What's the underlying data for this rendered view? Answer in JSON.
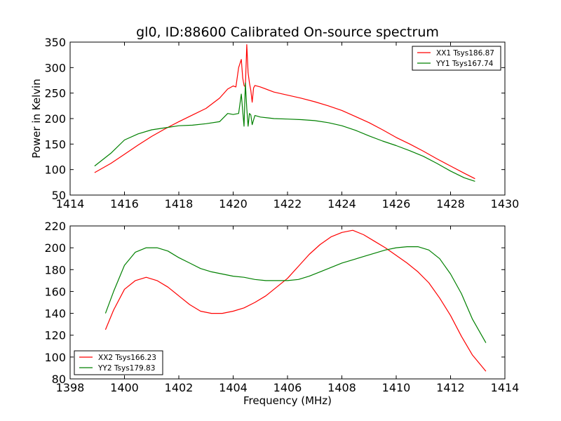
{
  "chart_data": [
    {
      "type": "line",
      "title": "gl0, ID:88600 Calibrated On-source spectrum",
      "xlabel": "",
      "ylabel": "Power in Kelvin",
      "xlim": [
        1414,
        1430
      ],
      "ylim": [
        50,
        350
      ],
      "xticks": [
        "1414",
        "1416",
        "1418",
        "1420",
        "1422",
        "1424",
        "1426",
        "1428",
        "1430"
      ],
      "yticks": [
        "50",
        "100",
        "150",
        "200",
        "250",
        "300",
        "350"
      ],
      "grid": false,
      "legend_position": "top-right",
      "series": [
        {
          "name": "XX1 Tsys186.87",
          "color": "#ff0000",
          "points": [
            [
              1414.9,
              94
            ],
            [
              1415.5,
              112
            ],
            [
              1416,
              130
            ],
            [
              1416.5,
              148
            ],
            [
              1417,
              165
            ],
            [
              1417.5,
              180
            ],
            [
              1418,
              194
            ],
            [
              1418.5,
              207
            ],
            [
              1419,
              220
            ],
            [
              1419.5,
              240
            ],
            [
              1419.8,
              258
            ],
            [
              1420.0,
              264
            ],
            [
              1420.1,
              262
            ],
            [
              1420.2,
              300
            ],
            [
              1420.3,
              316
            ],
            [
              1420.35,
              280
            ],
            [
              1420.4,
              265
            ],
            [
              1420.45,
              262
            ],
            [
              1420.5,
              345
            ],
            [
              1420.55,
              290
            ],
            [
              1420.6,
              270
            ],
            [
              1420.65,
              255
            ],
            [
              1420.7,
              232
            ],
            [
              1420.75,
              260
            ],
            [
              1420.8,
              265
            ],
            [
              1421,
              262
            ],
            [
              1421.5,
              252
            ],
            [
              1422,
              246
            ],
            [
              1422.5,
              240
            ],
            [
              1423,
              233
            ],
            [
              1423.5,
              225
            ],
            [
              1424,
              216
            ],
            [
              1424.5,
              204
            ],
            [
              1425,
              192
            ],
            [
              1425.5,
              178
            ],
            [
              1426,
              163
            ],
            [
              1426.5,
              150
            ],
            [
              1427,
              136
            ],
            [
              1427.5,
              121
            ],
            [
              1428,
              107
            ],
            [
              1428.5,
              93
            ],
            [
              1428.9,
              82
            ]
          ]
        },
        {
          "name": "YY1 Tsys167.74",
          "color": "#008000",
          "points": [
            [
              1414.9,
              107
            ],
            [
              1415.5,
              132
            ],
            [
              1416,
              158
            ],
            [
              1416.5,
              170
            ],
            [
              1417,
              178
            ],
            [
              1417.5,
              182
            ],
            [
              1418,
              186
            ],
            [
              1418.5,
              187
            ],
            [
              1419,
              190
            ],
            [
              1419.5,
              194
            ],
            [
              1419.8,
              210
            ],
            [
              1420.0,
              208
            ],
            [
              1420.2,
              210
            ],
            [
              1420.3,
              248
            ],
            [
              1420.35,
              215
            ],
            [
              1420.4,
              185
            ],
            [
              1420.45,
              270
            ],
            [
              1420.5,
              220
            ],
            [
              1420.55,
              185
            ],
            [
              1420.6,
              210
            ],
            [
              1420.65,
              207
            ],
            [
              1420.7,
              188
            ],
            [
              1420.8,
              206
            ],
            [
              1421,
              203
            ],
            [
              1421.5,
              200
            ],
            [
              1422,
              199
            ],
            [
              1422.5,
              198
            ],
            [
              1423,
              196
            ],
            [
              1423.5,
              192
            ],
            [
              1424,
              186
            ],
            [
              1424.5,
              177
            ],
            [
              1425,
              166
            ],
            [
              1425.5,
              156
            ],
            [
              1426,
              147
            ],
            [
              1426.5,
              137
            ],
            [
              1427,
              126
            ],
            [
              1427.5,
              112
            ],
            [
              1428,
              97
            ],
            [
              1428.5,
              84
            ],
            [
              1428.9,
              77
            ]
          ]
        }
      ]
    },
    {
      "type": "line",
      "title": "",
      "xlabel": "Frequency (MHz)",
      "ylabel": "",
      "xlim": [
        1398,
        1414
      ],
      "ylim": [
        80,
        220
      ],
      "xticks": [
        "1398",
        "1400",
        "1402",
        "1404",
        "1406",
        "1408",
        "1410",
        "1412",
        "1414"
      ],
      "yticks": [
        "80",
        "100",
        "120",
        "140",
        "160",
        "180",
        "200",
        "220"
      ],
      "grid": false,
      "legend_position": "bottom-left",
      "series": [
        {
          "name": "XX2 Tsys166.23",
          "color": "#ff0000",
          "points": [
            [
              1399.3,
              125
            ],
            [
              1399.6,
              143
            ],
            [
              1400,
              162
            ],
            [
              1400.4,
              170
            ],
            [
              1400.8,
              173
            ],
            [
              1401.2,
              170
            ],
            [
              1401.6,
              164
            ],
            [
              1402,
              156
            ],
            [
              1402.4,
              148
            ],
            [
              1402.8,
              142
            ],
            [
              1403.2,
              140
            ],
            [
              1403.6,
              140
            ],
            [
              1404,
              142
            ],
            [
              1404.4,
              145
            ],
            [
              1404.8,
              150
            ],
            [
              1405.2,
              156
            ],
            [
              1405.6,
              164
            ],
            [
              1406,
              172
            ],
            [
              1406.4,
              183
            ],
            [
              1406.8,
              194
            ],
            [
              1407.2,
              203
            ],
            [
              1407.6,
              210
            ],
            [
              1408,
              214
            ],
            [
              1408.4,
              216
            ],
            [
              1408.8,
              212
            ],
            [
              1409.2,
              206
            ],
            [
              1409.6,
              200
            ],
            [
              1410,
              193
            ],
            [
              1410.4,
              186
            ],
            [
              1410.8,
              178
            ],
            [
              1411.2,
              168
            ],
            [
              1411.6,
              154
            ],
            [
              1412,
              138
            ],
            [
              1412.4,
              119
            ],
            [
              1412.8,
              102
            ],
            [
              1413.3,
              87
            ]
          ]
        },
        {
          "name": "YY2 Tsys179.83",
          "color": "#008000",
          "points": [
            [
              1399.3,
              140
            ],
            [
              1399.6,
              160
            ],
            [
              1400,
              184
            ],
            [
              1400.4,
              196
            ],
            [
              1400.8,
              200
            ],
            [
              1401.2,
              200
            ],
            [
              1401.6,
              197
            ],
            [
              1402,
              191
            ],
            [
              1402.4,
              186
            ],
            [
              1402.8,
              181
            ],
            [
              1403.2,
              178
            ],
            [
              1403.6,
              176
            ],
            [
              1404,
              174
            ],
            [
              1404.4,
              173
            ],
            [
              1404.8,
              171
            ],
            [
              1405.2,
              170
            ],
            [
              1405.6,
              170
            ],
            [
              1406,
              170
            ],
            [
              1406.4,
              171
            ],
            [
              1406.8,
              174
            ],
            [
              1407.2,
              178
            ],
            [
              1407.6,
              182
            ],
            [
              1408,
              186
            ],
            [
              1408.4,
              189
            ],
            [
              1408.8,
              192
            ],
            [
              1409.2,
              195
            ],
            [
              1409.6,
              198
            ],
            [
              1410,
              200
            ],
            [
              1410.4,
              201
            ],
            [
              1410.8,
              201
            ],
            [
              1411.2,
              198
            ],
            [
              1411.6,
              190
            ],
            [
              1412,
              176
            ],
            [
              1412.4,
              158
            ],
            [
              1412.8,
              135
            ],
            [
              1413.3,
              113
            ]
          ]
        }
      ]
    }
  ]
}
